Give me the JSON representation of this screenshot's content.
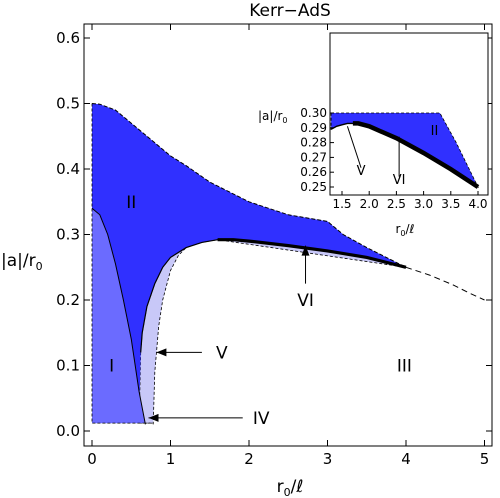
{
  "chart_data": [
    {
      "type": "area",
      "title": "Kerr−AdS",
      "xlabel_var": "r",
      "xlabel_sub": "0",
      "xlabel_rest": "/ℓ",
      "ylabel_pre": "|a|/r",
      "ylabel_sub": "0",
      "xlim": [
        0,
        5
      ],
      "ylim": [
        0,
        0.6
      ],
      "xticks": [
        "0",
        "1",
        "2",
        "3",
        "4",
        "5"
      ],
      "yticks": [
        "0.0",
        "0.1",
        "0.2",
        "0.3",
        "0.4",
        "0.5",
        "0.6"
      ],
      "region_labels": [
        "I",
        "II",
        "III"
      ],
      "annotations": [
        "IV",
        "V",
        "VI"
      ],
      "colors": {
        "region_I": "#6b6bff",
        "region_II": "#3030ff",
        "region_light": "#c8c8f8"
      },
      "series": [
        {
          "name": "upper boundary",
          "x": [
            0,
            0.1,
            0.3,
            0.5,
            0.8,
            1.0,
            1.2,
            1.5,
            2.0,
            2.5,
            3.0,
            3.2,
            3.5,
            4.0
          ],
          "y": [
            0.5,
            0.499,
            0.49,
            0.47,
            0.44,
            0.42,
            0.405,
            0.38,
            0.35,
            0.33,
            0.32,
            0.3,
            0.28,
            0.25
          ]
        },
        {
          "name": "lower boundary",
          "x": [
            0.62,
            0.64,
            0.7,
            0.8,
            0.9,
            1.0,
            1.2,
            1.4,
            1.6,
            1.8,
            2.0,
            2.5,
            3.0,
            3.5,
            4.0
          ],
          "y": [
            0.12,
            0.15,
            0.19,
            0.225,
            0.25,
            0.265,
            0.28,
            0.288,
            0.292,
            0.292,
            0.29,
            0.283,
            0.275,
            0.265,
            0.25
          ]
        },
        {
          "name": "light region outer boundary",
          "x": [
            0.78,
            0.8,
            0.85,
            0.9,
            1.0,
            1.1,
            1.2,
            1.4,
            1.6
          ],
          "y": [
            0.01,
            0.09,
            0.16,
            0.2,
            0.245,
            0.268,
            0.28,
            0.29,
            0.292
          ]
        },
        {
          "name": "dashed continuation",
          "x": [
            4.0,
            4.3,
            4.6,
            4.8,
            5.0
          ],
          "y": [
            0.25,
            0.238,
            0.223,
            0.211,
            0.2
          ]
        },
        {
          "name": "region I boundary",
          "x": [
            0,
            0.1,
            0.2,
            0.3,
            0.4,
            0.5,
            0.6,
            0.68
          ],
          "y": [
            0.34,
            0.33,
            0.3,
            0.255,
            0.2,
            0.14,
            0.06,
            0.01
          ]
        }
      ]
    },
    {
      "type": "area",
      "xlabel_var": "r",
      "xlabel_sub": "0",
      "xlabel_rest": "/ℓ",
      "ylabel_pre": "|a|/r",
      "ylabel_sub": "0",
      "xlim": [
        1.3,
        4.0
      ],
      "ylim": [
        0.248,
        0.3
      ],
      "xticks": [
        "1.5",
        "2.0",
        "2.5",
        "3.0",
        "3.5",
        "4.0"
      ],
      "yticks": [
        "0.25",
        "0.26",
        "0.27",
        "0.28",
        "0.29",
        "0.30"
      ],
      "region_labels": [
        "II"
      ],
      "annotations": [
        "V",
        "VI"
      ],
      "series": [
        {
          "name": "lower boundary",
          "x": [
            1.3,
            1.4,
            1.5,
            1.6,
            1.7,
            1.8,
            2.0,
            2.5,
            3.0,
            3.5,
            4.0
          ],
          "y": [
            0.289,
            0.291,
            0.292,
            0.293,
            0.293,
            0.293,
            0.291,
            0.283,
            0.273,
            0.262,
            0.25
          ]
        },
        {
          "name": "upper boundary",
          "x": [
            1.3,
            3.1,
            3.3,
            3.6,
            4.0
          ],
          "y": [
            0.3,
            0.3,
            0.3,
            0.28,
            0.25
          ]
        }
      ]
    }
  ]
}
